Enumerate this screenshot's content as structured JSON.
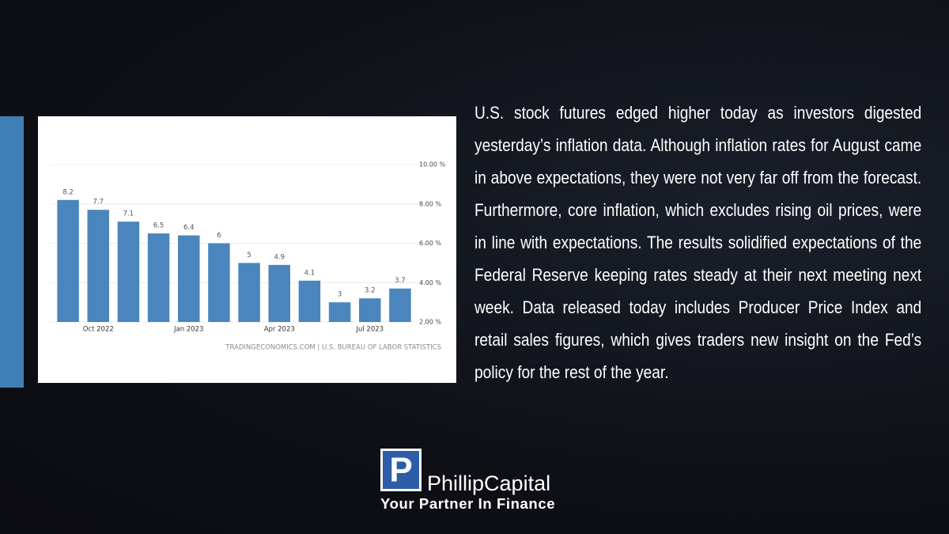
{
  "chart_data": {
    "type": "bar",
    "categories": [
      null,
      "Oct 2022",
      null,
      null,
      "Jan 2023",
      null,
      null,
      "Apr 2023",
      null,
      null,
      "Jul 2023",
      null
    ],
    "values": [
      8.2,
      7.7,
      7.1,
      6.5,
      6.4,
      6,
      5,
      4.9,
      4.1,
      3,
      3.2,
      3.7
    ],
    "color": "#4a86bd",
    "ylim": [
      2,
      10
    ],
    "yticks": [
      {
        "value": 2,
        "label": "2.00 %"
      },
      {
        "value": 4,
        "label": "4.00 %"
      },
      {
        "value": 6,
        "label": "6.00 %"
      },
      {
        "value": 8,
        "label": "8.00 %"
      },
      {
        "value": 10,
        "label": "10.00 %"
      }
    ],
    "grid": true,
    "source": "TRADINGECONOMICS.COM | U.S. BUREAU OF LABOR STATISTICS"
  },
  "article": {
    "text": "U.S. stock futures edged higher today as investors digested yesterday’s inflation data. Although inflation rates for August came in above expectations, they were not very far off from the forecast. Furthermore, core inflation, which excludes rising oil prices, were in line with expectations. The results solidified expectations of the Federal Reserve keeping rates steady at their next meeting next week. Data released today includes Producer Price Index and retail sales figures, which gives traders new insight on the Fed’s policy for the rest of the year."
  },
  "logo": {
    "letter": "P",
    "name": "PhillipCapital",
    "tagline": "Your Partner In Finance"
  }
}
